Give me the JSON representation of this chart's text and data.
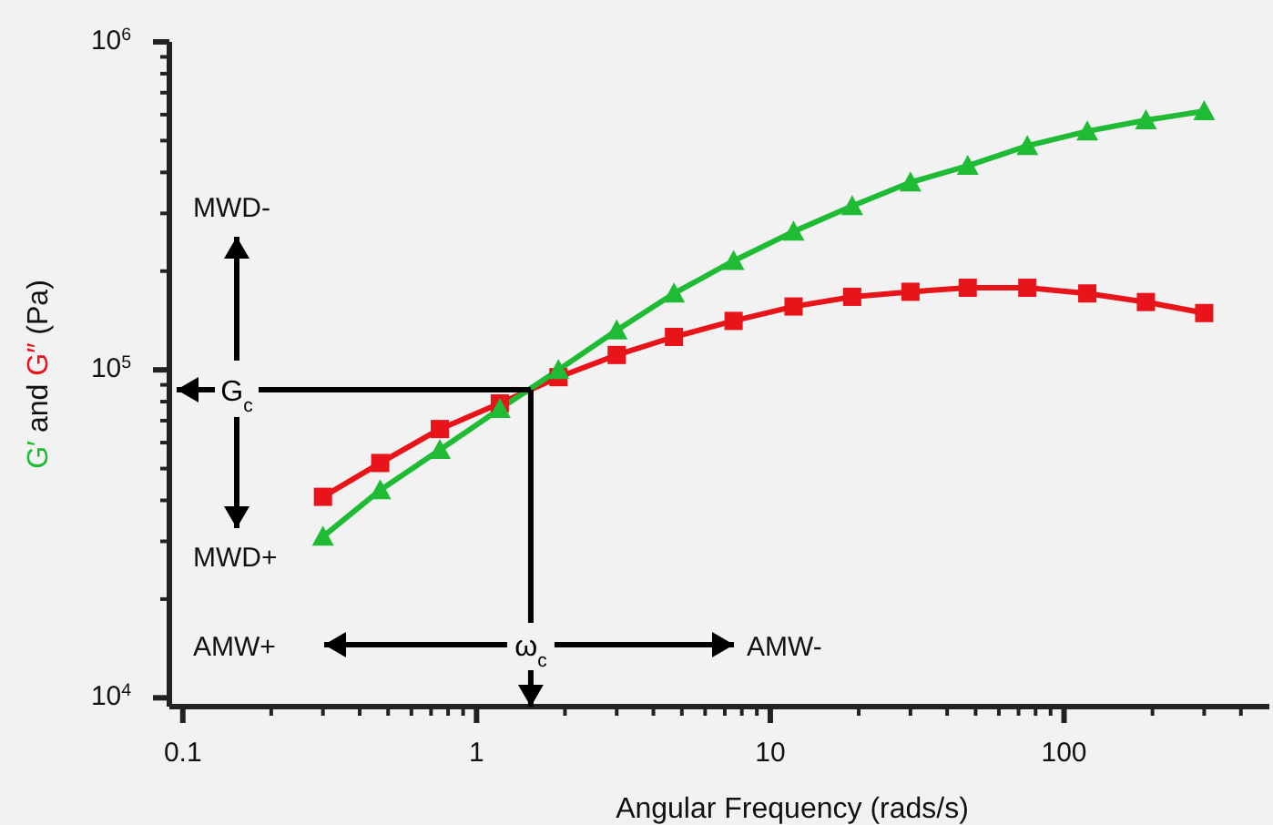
{
  "chart_data": {
    "type": "line",
    "xlabel": "Angular Frequency (rads/s)",
    "ylabel": "G′ and G″ (Pa)",
    "log": "xy",
    "line_style": "solid",
    "xlim": [
      0.09,
      500
    ],
    "ylim": [
      9400,
      1000000
    ],
    "xticks": [
      {
        "value": 0.1,
        "label": "0.1"
      },
      {
        "value": 0.2,
        "label": null
      },
      {
        "value": 0.3,
        "label": null
      },
      {
        "value": 0.4,
        "label": null
      },
      {
        "value": 0.5,
        "label": null
      },
      {
        "value": 0.6,
        "label": null
      },
      {
        "value": 0.7,
        "label": null
      },
      {
        "value": 0.8,
        "label": null
      },
      {
        "value": 0.9,
        "label": null
      },
      1,
      {
        "value": 2,
        "label": null
      },
      {
        "value": 3,
        "label": null
      },
      {
        "value": 4,
        "label": null
      },
      {
        "value": 5,
        "label": null
      },
      {
        "value": 6,
        "label": null
      },
      {
        "value": 7,
        "label": null
      },
      {
        "value": 8,
        "label": null
      },
      {
        "value": 9,
        "label": null
      },
      10,
      {
        "value": 20,
        "label": null
      },
      {
        "value": 30,
        "label": null
      },
      {
        "value": 40,
        "label": null
      },
      {
        "value": 50,
        "label": null
      },
      {
        "value": 60,
        "label": null
      },
      {
        "value": 70,
        "label": null
      },
      {
        "value": 80,
        "label": null
      },
      {
        "value": 90,
        "label": null
      },
      100,
      {
        "value": 200,
        "label": null
      },
      {
        "value": 300,
        "label": null
      },
      {
        "value": 400,
        "label": null
      }
    ],
    "yticks": [
      {
        "value": 10000,
        "label": "10$^{4}$"
      },
      {
        "value": 20000,
        "label": null
      },
      {
        "value": 30000,
        "label": null
      },
      {
        "value": 40000,
        "label": null
      },
      {
        "value": 50000,
        "label": null
      },
      {
        "value": 60000,
        "label": null
      },
      {
        "value": 70000,
        "label": null
      },
      {
        "value": 80000,
        "label": null
      },
      {
        "value": 90000,
        "label": null
      },
      {
        "value": 100000,
        "label": "10$^{5}$"
      },
      {
        "value": 200000,
        "label": null
      },
      {
        "value": 300000,
        "label": null
      },
      {
        "value": 400000,
        "label": null
      },
      {
        "value": 500000,
        "label": null
      },
      {
        "value": 600000,
        "label": null
      },
      {
        "value": 700000,
        "label": null
      },
      {
        "value": 800000,
        "label": null
      },
      {
        "value": 900000,
        "label": null
      },
      {
        "value": 1000000,
        "label": "10$^{6}$"
      }
    ],
    "x": [
      0.3,
      0.47,
      0.75,
      1.2,
      1.9,
      3,
      4.7,
      7.5,
      12,
      19,
      30,
      47,
      75,
      120,
      190,
      300
    ],
    "series": [
      {
        "color": "#1fbb35",
        "marker": "triangle",
        "values": [
          31000,
          43000,
          57000,
          76000,
          100000,
          132000,
          171000,
          215000,
          264000,
          316000,
          373000,
          419000,
          482000,
          534000,
          577000,
          615000
        ]
      },
      {
        "color": "#e8141a",
        "marker": "square",
        "values": [
          41000,
          52000,
          66000,
          79000,
          95000,
          111000,
          126000,
          141000,
          156000,
          167000,
          173000,
          178000,
          178000,
          171000,
          161000,
          149000
        ]
      }
    ],
    "ref_lines": [
      {
        "axis": "y",
        "value": 87000,
        "label": "G$_{c}$"
      },
      {
        "axis": "x",
        "value": 1.53,
        "label": "ω$_{c}$"
      }
    ],
    "annotations": [
      "MWD-",
      "MWD+",
      "AMW+",
      "AMW-"
    ]
  }
}
